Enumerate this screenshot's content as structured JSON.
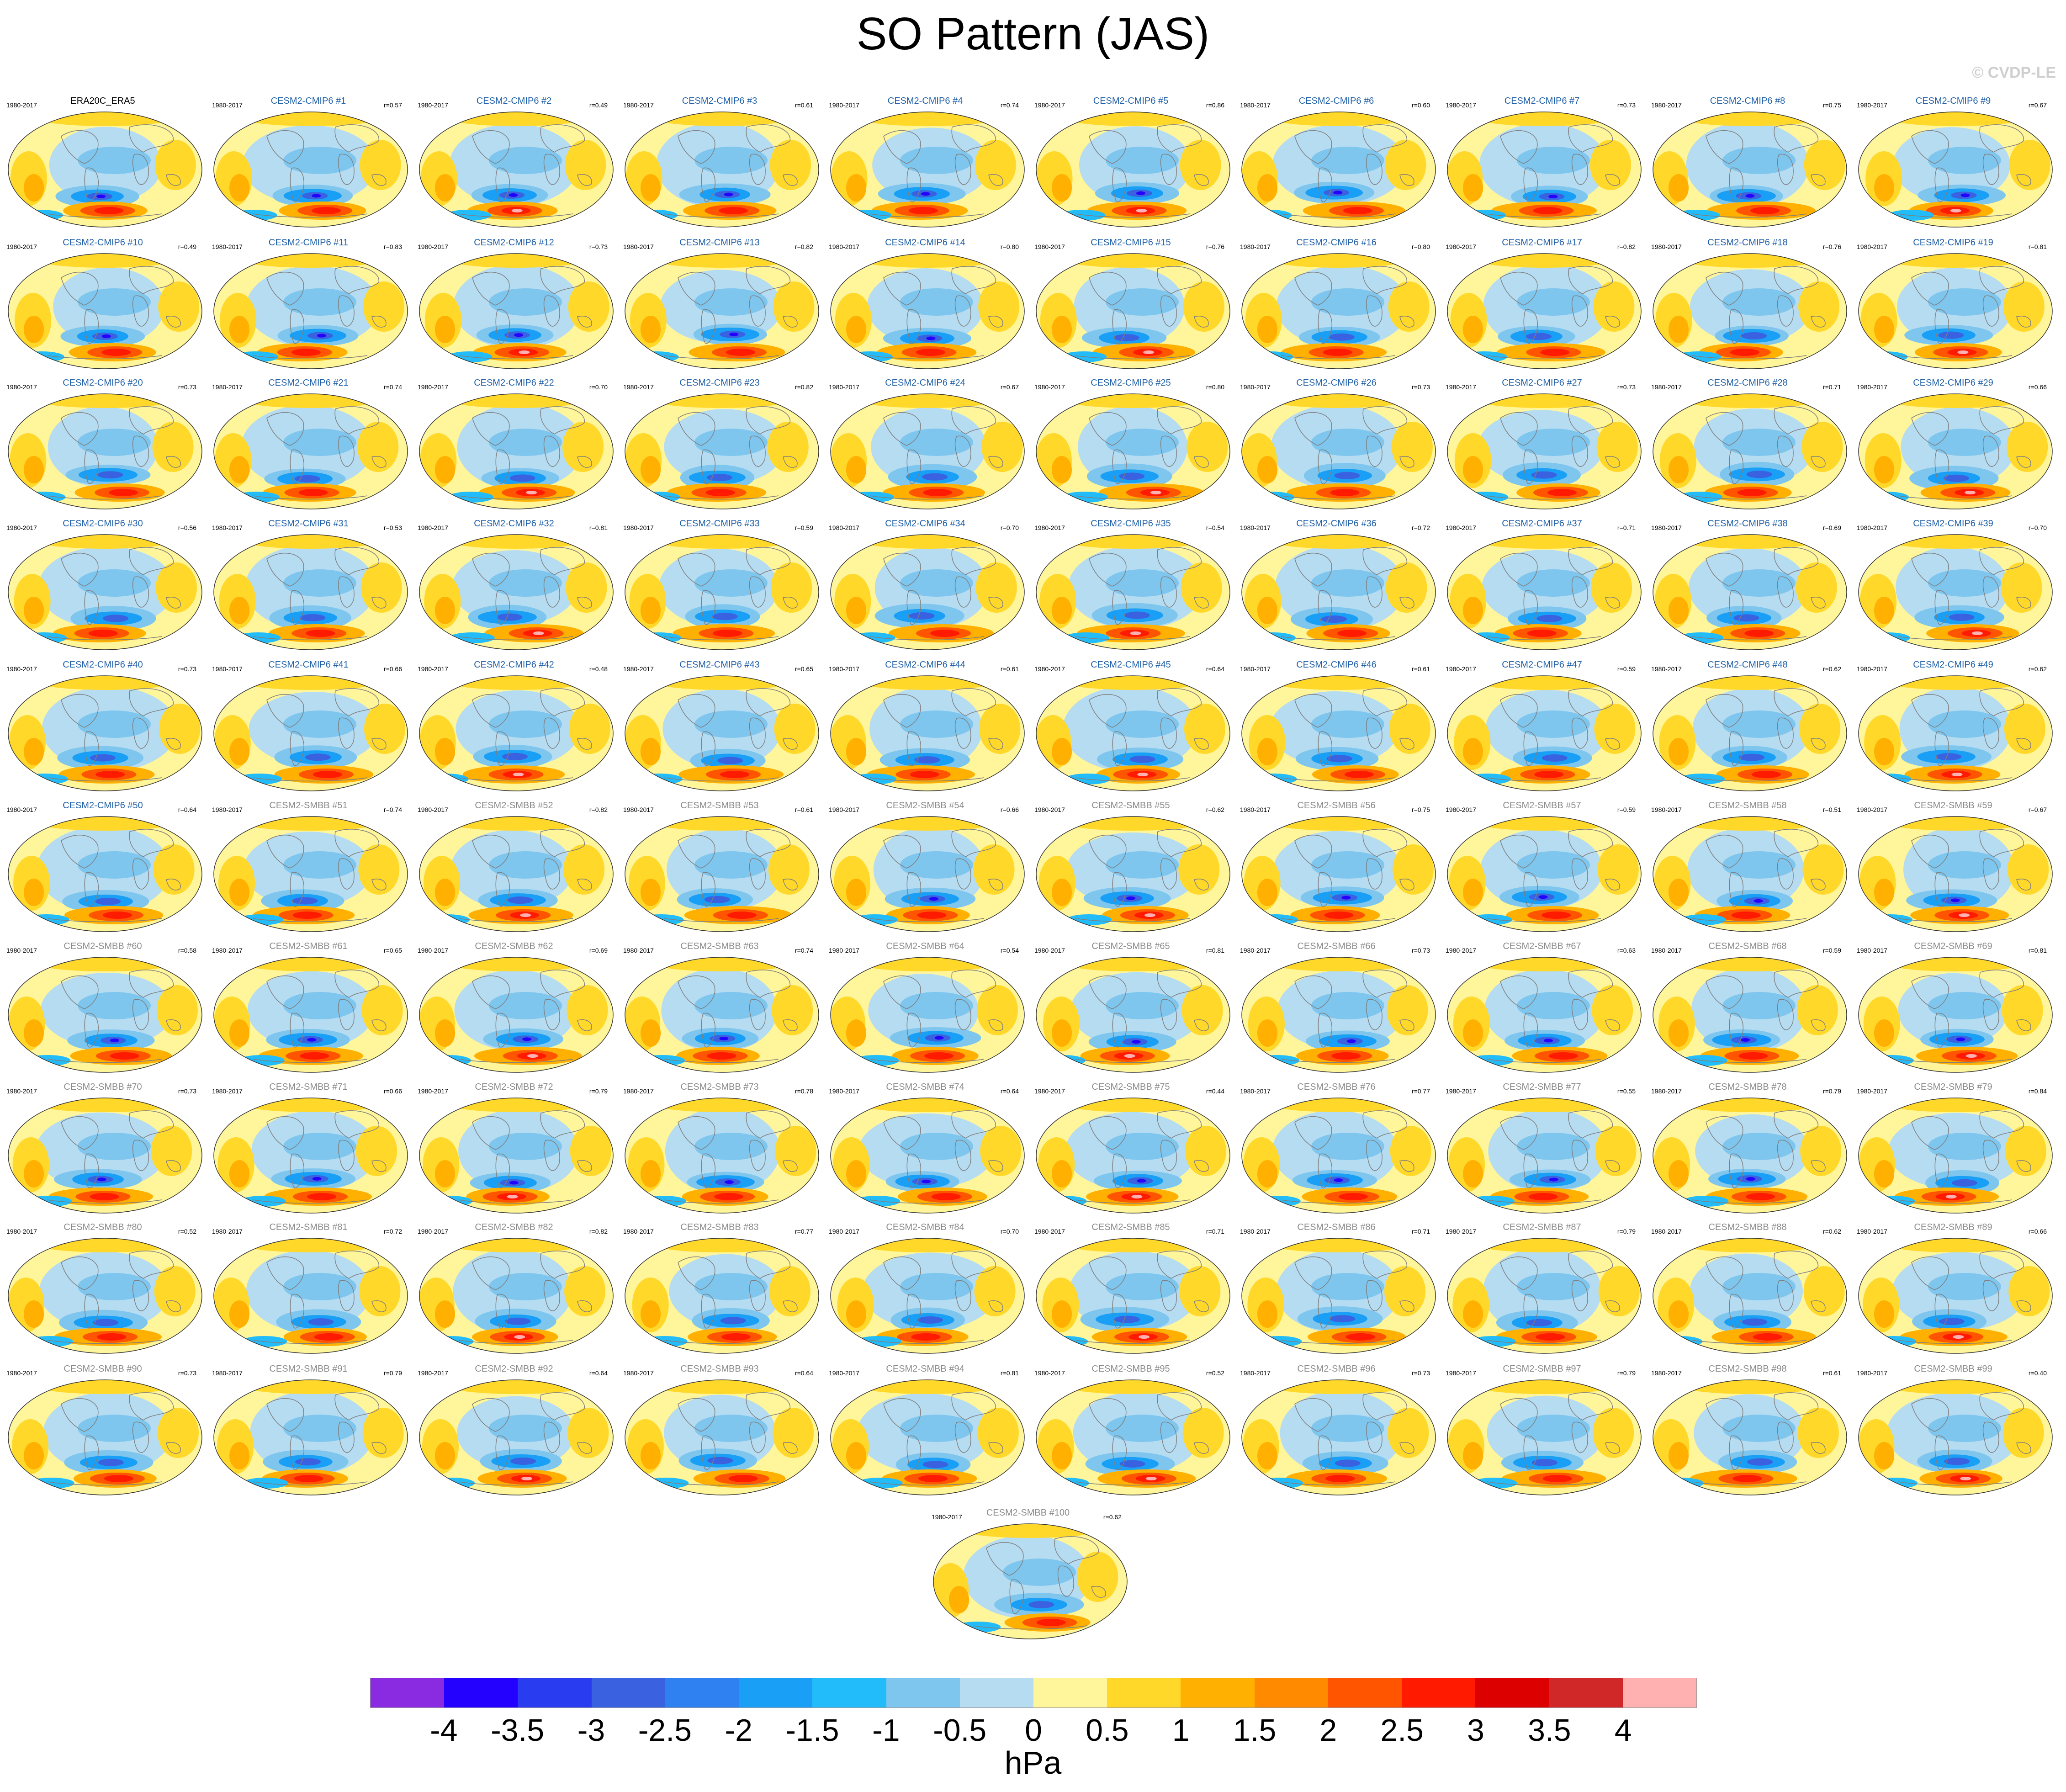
{
  "title": "SO Pattern (JAS)",
  "watermark": "© CVDP-LE",
  "chart_data": {
    "type": "heatmap",
    "title": "SO Pattern (JAS)",
    "units": "hPa",
    "period": "1980-2017",
    "colorbar": {
      "ticks": [
        "-4",
        "-3.5",
        "-3",
        "-2.5",
        "-2",
        "-1.5",
        "-1",
        "-0.5",
        "0",
        "0.5",
        "1",
        "1.5",
        "2",
        "2.5",
        "3",
        "3.5",
        "4"
      ],
      "colors": [
        "#8a2be2",
        "#2400ff",
        "#2a3cf0",
        "#3a62e0",
        "#2f80f0",
        "#199ff5",
        "#22bcfa",
        "#7ec6ee",
        "#b6dcf2",
        "#fff59a",
        "#ffd82a",
        "#ffb000",
        "#ff8a00",
        "#ff5500",
        "#ff1a00",
        "#dd0000",
        "#d02828",
        "#ffb0b0"
      ]
    },
    "panels": [
      {
        "name": "ERA20C_ERA5",
        "period": "1980-2017",
        "r": ""
      },
      {
        "name": "CESM2-CMIP6 #1",
        "period": "1980-2017",
        "r": "r=0.57"
      },
      {
        "name": "CESM2-CMIP6 #2",
        "period": "1980-2017",
        "r": "r=0.49"
      },
      {
        "name": "CESM2-CMIP6 #3",
        "period": "1980-2017",
        "r": "r=0.61"
      },
      {
        "name": "CESM2-CMIP6 #4",
        "period": "1980-2017",
        "r": "r=0.74"
      },
      {
        "name": "CESM2-CMIP6 #5",
        "period": "1980-2017",
        "r": "r=0.86"
      },
      {
        "name": "CESM2-CMIP6 #6",
        "period": "1980-2017",
        "r": "r=0.60"
      },
      {
        "name": "CESM2-CMIP6 #7",
        "period": "1980-2017",
        "r": "r=0.73"
      },
      {
        "name": "CESM2-CMIP6 #8",
        "period": "1980-2017",
        "r": "r=0.75"
      },
      {
        "name": "CESM2-CMIP6 #9",
        "period": "1980-2017",
        "r": "r=0.67"
      },
      {
        "name": "CESM2-CMIP6 #10",
        "period": "1980-2017",
        "r": "r=0.49"
      },
      {
        "name": "CESM2-CMIP6 #11",
        "period": "1980-2017",
        "r": "r=0.83"
      },
      {
        "name": "CESM2-CMIP6 #12",
        "period": "1980-2017",
        "r": "r=0.73"
      },
      {
        "name": "CESM2-CMIP6 #13",
        "period": "1980-2017",
        "r": "r=0.82"
      },
      {
        "name": "CESM2-CMIP6 #14",
        "period": "1980-2017",
        "r": "r=0.80"
      },
      {
        "name": "CESM2-CMIP6 #15",
        "period": "1980-2017",
        "r": "r=0.76"
      },
      {
        "name": "CESM2-CMIP6 #16",
        "period": "1980-2017",
        "r": "r=0.80"
      },
      {
        "name": "CESM2-CMIP6 #17",
        "period": "1980-2017",
        "r": "r=0.82"
      },
      {
        "name": "CESM2-CMIP6 #18",
        "period": "1980-2017",
        "r": "r=0.76"
      },
      {
        "name": "CESM2-CMIP6 #19",
        "period": "1980-2017",
        "r": "r=0.81"
      },
      {
        "name": "CESM2-CMIP6 #20",
        "period": "1980-2017",
        "r": "r=0.73"
      },
      {
        "name": "CESM2-CMIP6 #21",
        "period": "1980-2017",
        "r": "r=0.74"
      },
      {
        "name": "CESM2-CMIP6 #22",
        "period": "1980-2017",
        "r": "r=0.70"
      },
      {
        "name": "CESM2-CMIP6 #23",
        "period": "1980-2017",
        "r": "r=0.82"
      },
      {
        "name": "CESM2-CMIP6 #24",
        "period": "1980-2017",
        "r": "r=0.67"
      },
      {
        "name": "CESM2-CMIP6 #25",
        "period": "1980-2017",
        "r": "r=0.80"
      },
      {
        "name": "CESM2-CMIP6 #26",
        "period": "1980-2017",
        "r": "r=0.73"
      },
      {
        "name": "CESM2-CMIP6 #27",
        "period": "1980-2017",
        "r": "r=0.73"
      },
      {
        "name": "CESM2-CMIP6 #28",
        "period": "1980-2017",
        "r": "r=0.71"
      },
      {
        "name": "CESM2-CMIP6 #29",
        "period": "1980-2017",
        "r": "r=0.66"
      },
      {
        "name": "CESM2-CMIP6 #30",
        "period": "1980-2017",
        "r": "r=0.56"
      },
      {
        "name": "CESM2-CMIP6 #31",
        "period": "1980-2017",
        "r": "r=0.53"
      },
      {
        "name": "CESM2-CMIP6 #32",
        "period": "1980-2017",
        "r": "r=0.81"
      },
      {
        "name": "CESM2-CMIP6 #33",
        "period": "1980-2017",
        "r": "r=0.59"
      },
      {
        "name": "CESM2-CMIP6 #34",
        "period": "1980-2017",
        "r": "r=0.70"
      },
      {
        "name": "CESM2-CMIP6 #35",
        "period": "1980-2017",
        "r": "r=0.54"
      },
      {
        "name": "CESM2-CMIP6 #36",
        "period": "1980-2017",
        "r": "r=0.72"
      },
      {
        "name": "CESM2-CMIP6 #37",
        "period": "1980-2017",
        "r": "r=0.71"
      },
      {
        "name": "CESM2-CMIP6 #38",
        "period": "1980-2017",
        "r": "r=0.69"
      },
      {
        "name": "CESM2-CMIP6 #39",
        "period": "1980-2017",
        "r": "r=0.70"
      },
      {
        "name": "CESM2-CMIP6 #40",
        "period": "1980-2017",
        "r": "r=0.73"
      },
      {
        "name": "CESM2-CMIP6 #41",
        "period": "1980-2017",
        "r": "r=0.66"
      },
      {
        "name": "CESM2-CMIP6 #42",
        "period": "1980-2017",
        "r": "r=0.48"
      },
      {
        "name": "CESM2-CMIP6 #43",
        "period": "1980-2017",
        "r": "r=0.65"
      },
      {
        "name": "CESM2-CMIP6 #44",
        "period": "1980-2017",
        "r": "r=0.61"
      },
      {
        "name": "CESM2-CMIP6 #45",
        "period": "1980-2017",
        "r": "r=0.64"
      },
      {
        "name": "CESM2-CMIP6 #46",
        "period": "1980-2017",
        "r": "r=0.61"
      },
      {
        "name": "CESM2-CMIP6 #47",
        "period": "1980-2017",
        "r": "r=0.59"
      },
      {
        "name": "CESM2-CMIP6 #48",
        "period": "1980-2017",
        "r": "r=0.62"
      },
      {
        "name": "CESM2-CMIP6 #49",
        "period": "1980-2017",
        "r": "r=0.62"
      },
      {
        "name": "CESM2-CMIP6 #50",
        "period": "1980-2017",
        "r": "r=0.64"
      },
      {
        "name": "CESM2-SMBB #51",
        "period": "1980-2017",
        "r": "r=0.74"
      },
      {
        "name": "CESM2-SMBB #52",
        "period": "1980-2017",
        "r": "r=0.82"
      },
      {
        "name": "CESM2-SMBB #53",
        "period": "1980-2017",
        "r": "r=0.61"
      },
      {
        "name": "CESM2-SMBB #54",
        "period": "1980-2017",
        "r": "r=0.66"
      },
      {
        "name": "CESM2-SMBB #55",
        "period": "1980-2017",
        "r": "r=0.62"
      },
      {
        "name": "CESM2-SMBB #56",
        "period": "1980-2017",
        "r": "r=0.75"
      },
      {
        "name": "CESM2-SMBB #57",
        "period": "1980-2017",
        "r": "r=0.59"
      },
      {
        "name": "CESM2-SMBB #58",
        "period": "1980-2017",
        "r": "r=0.51"
      },
      {
        "name": "CESM2-SMBB #59",
        "period": "1980-2017",
        "r": "r=0.67"
      },
      {
        "name": "CESM2-SMBB #60",
        "period": "1980-2017",
        "r": "r=0.58"
      },
      {
        "name": "CESM2-SMBB #61",
        "period": "1980-2017",
        "r": "r=0.65"
      },
      {
        "name": "CESM2-SMBB #62",
        "period": "1980-2017",
        "r": "r=0.69"
      },
      {
        "name": "CESM2-SMBB #63",
        "period": "1980-2017",
        "r": "r=0.74"
      },
      {
        "name": "CESM2-SMBB #64",
        "period": "1980-2017",
        "r": "r=0.54"
      },
      {
        "name": "CESM2-SMBB #65",
        "period": "1980-2017",
        "r": "r=0.81"
      },
      {
        "name": "CESM2-SMBB #66",
        "period": "1980-2017",
        "r": "r=0.73"
      },
      {
        "name": "CESM2-SMBB #67",
        "period": "1980-2017",
        "r": "r=0.63"
      },
      {
        "name": "CESM2-SMBB #68",
        "period": "1980-2017",
        "r": "r=0.59"
      },
      {
        "name": "CESM2-SMBB #69",
        "period": "1980-2017",
        "r": "r=0.81"
      },
      {
        "name": "CESM2-SMBB #70",
        "period": "1980-2017",
        "r": "r=0.73"
      },
      {
        "name": "CESM2-SMBB #71",
        "period": "1980-2017",
        "r": "r=0.66"
      },
      {
        "name": "CESM2-SMBB #72",
        "period": "1980-2017",
        "r": "r=0.79"
      },
      {
        "name": "CESM2-SMBB #73",
        "period": "1980-2017",
        "r": "r=0.78"
      },
      {
        "name": "CESM2-SMBB #74",
        "period": "1980-2017",
        "r": "r=0.64"
      },
      {
        "name": "CESM2-SMBB #75",
        "period": "1980-2017",
        "r": "r=0.44"
      },
      {
        "name": "CESM2-SMBB #76",
        "period": "1980-2017",
        "r": "r=0.77"
      },
      {
        "name": "CESM2-SMBB #77",
        "period": "1980-2017",
        "r": "r=0.55"
      },
      {
        "name": "CESM2-SMBB #78",
        "period": "1980-2017",
        "r": "r=0.79"
      },
      {
        "name": "CESM2-SMBB #79",
        "period": "1980-2017",
        "r": "r=0.84"
      },
      {
        "name": "CESM2-SMBB #80",
        "period": "1980-2017",
        "r": "r=0.52"
      },
      {
        "name": "CESM2-SMBB #81",
        "period": "1980-2017",
        "r": "r=0.72"
      },
      {
        "name": "CESM2-SMBB #82",
        "period": "1980-2017",
        "r": "r=0.82"
      },
      {
        "name": "CESM2-SMBB #83",
        "period": "1980-2017",
        "r": "r=0.77"
      },
      {
        "name": "CESM2-SMBB #84",
        "period": "1980-2017",
        "r": "r=0.70"
      },
      {
        "name": "CESM2-SMBB #85",
        "period": "1980-2017",
        "r": "r=0.71"
      },
      {
        "name": "CESM2-SMBB #86",
        "period": "1980-2017",
        "r": "r=0.71"
      },
      {
        "name": "CESM2-SMBB #87",
        "period": "1980-2017",
        "r": "r=0.79"
      },
      {
        "name": "CESM2-SMBB #88",
        "period": "1980-2017",
        "r": "r=0.62"
      },
      {
        "name": "CESM2-SMBB #89",
        "period": "1980-2017",
        "r": "r=0.66"
      },
      {
        "name": "CESM2-SMBB #90",
        "period": "1980-2017",
        "r": "r=0.73"
      },
      {
        "name": "CESM2-SMBB #91",
        "period": "1980-2017",
        "r": "r=0.79"
      },
      {
        "name": "CESM2-SMBB #92",
        "period": "1980-2017",
        "r": "r=0.64"
      },
      {
        "name": "CESM2-SMBB #93",
        "period": "1980-2017",
        "r": "r=0.64"
      },
      {
        "name": "CESM2-SMBB #94",
        "period": "1980-2017",
        "r": "r=0.81"
      },
      {
        "name": "CESM2-SMBB #95",
        "period": "1980-2017",
        "r": "r=0.52"
      },
      {
        "name": "CESM2-SMBB #96",
        "period": "1980-2017",
        "r": "r=0.73"
      },
      {
        "name": "CESM2-SMBB #97",
        "period": "1980-2017",
        "r": "r=0.79"
      },
      {
        "name": "CESM2-SMBB #98",
        "period": "1980-2017",
        "r": "r=0.61"
      },
      {
        "name": "CESM2-SMBB #99",
        "period": "1980-2017",
        "r": "r=0.40"
      },
      {
        "name": "CESM2-SMBB #100",
        "period": "1980-2017",
        "r": "r=0.62"
      }
    ]
  },
  "colors": {
    "cmip6_label": "#1f5fa8",
    "smbb_label": "#8a8a8a",
    "obs_label": "#000000",
    "ocean_base": "#fff59a",
    "land_outline": "#7f7f7f"
  }
}
